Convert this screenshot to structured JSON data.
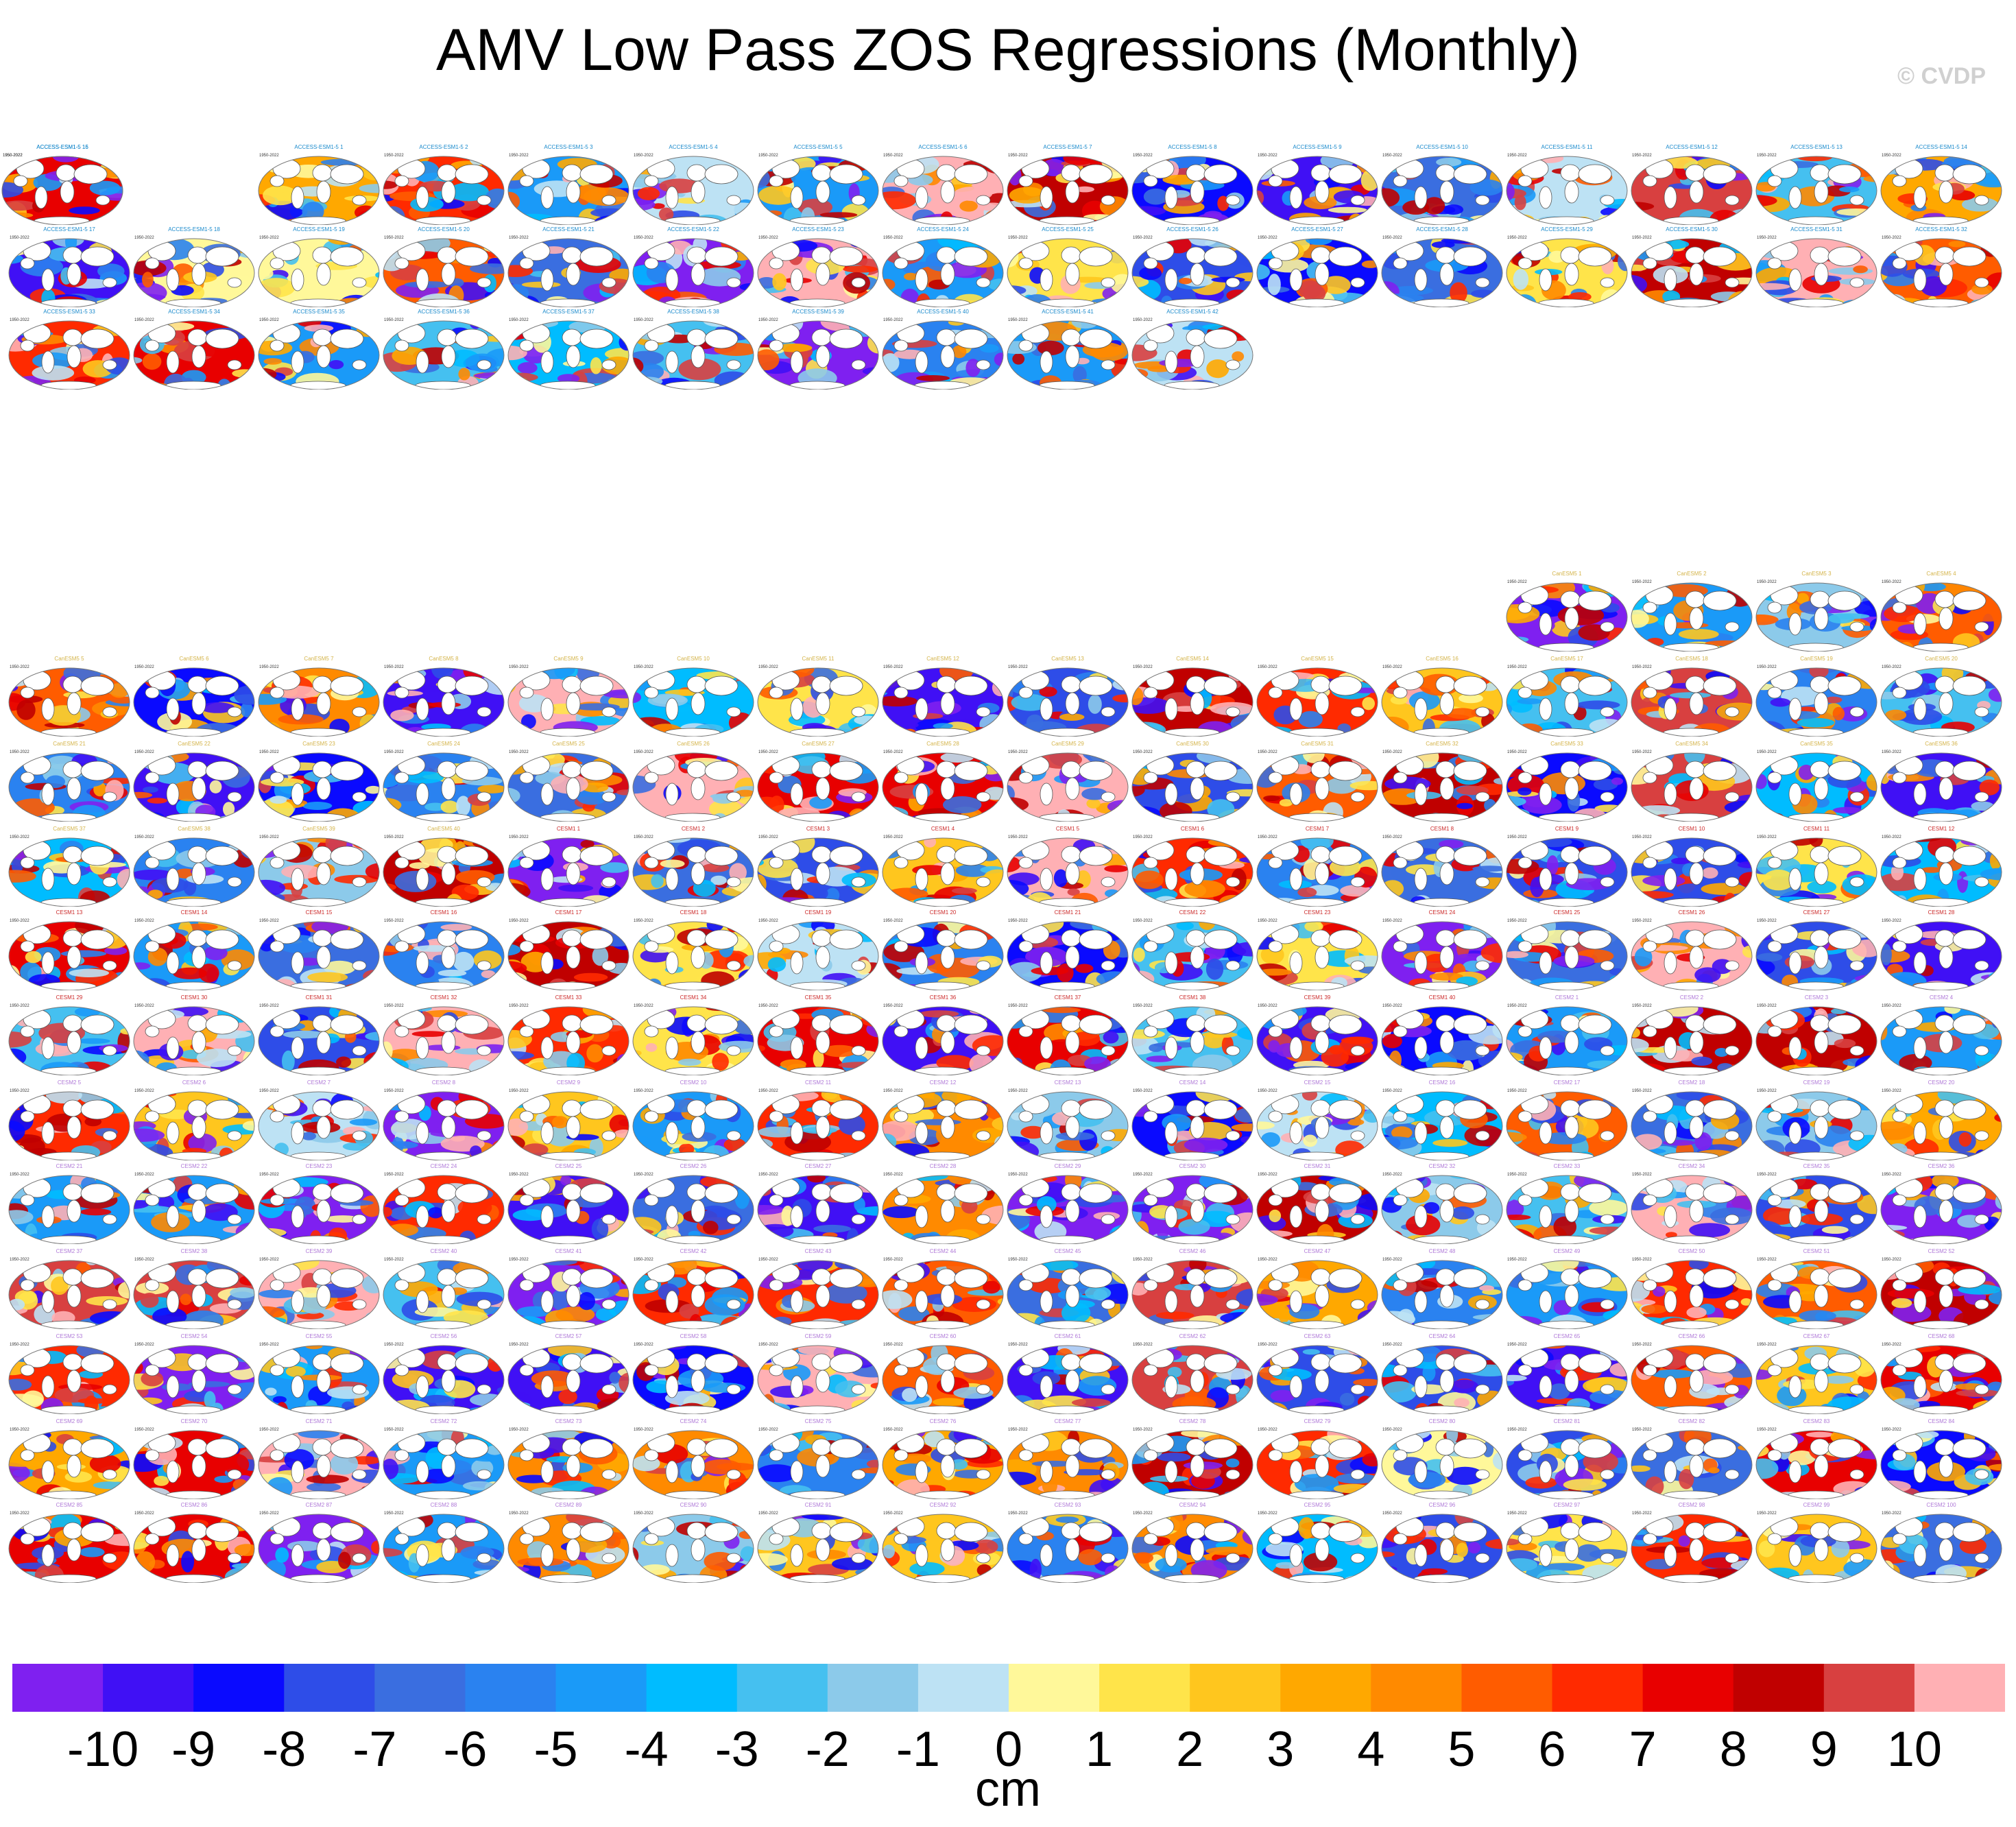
{
  "title": "AMV Low Pass ZOS Regressions (Monthly)",
  "copyright": "© CVDP",
  "units": "cm",
  "colors": {
    "bins": [
      "#7f20f0",
      "#4010f5",
      "#0a0aff",
      "#2e4de8",
      "#3a6ee0",
      "#2a82f0",
      "#1a9af8",
      "#00bcff",
      "#45c0f0",
      "#8ccaea",
      "#bde2f4",
      "#fff89a",
      "#ffe44a",
      "#ffc61e",
      "#ffa800",
      "#ff8a00",
      "#ff5c00",
      "#ff2a00",
      "#e80000",
      "#c00000",
      "#d84040",
      "#ffb0b4"
    ],
    "group_titles": [
      "#1a8acc",
      "#d4b44a",
      "#cc2a2a",
      "#b07ad8"
    ]
  },
  "colorbar": {
    "ticks": [
      "-10",
      "-9",
      "-8",
      "-7",
      "-6",
      "-5",
      "-4",
      "-3",
      "-2",
      "-1",
      "0",
      "1",
      "2",
      "3",
      "4",
      "5",
      "6",
      "7",
      "8",
      "9",
      "10"
    ]
  },
  "chart_data": {
    "type": "heatmap",
    "title": "AMV Low Pass ZOS Regressions (Monthly)",
    "units": "cm",
    "levels": [
      -10,
      -9,
      -8,
      -7,
      -6,
      -5,
      -4,
      -3,
      -2,
      -1,
      0,
      1,
      2,
      3,
      4,
      5,
      6,
      7,
      8,
      9,
      10
    ],
    "panel_period": "1950-2022",
    "groups": [
      {
        "model": "ACCESS-ESM1-5",
        "panel_count": 40
      },
      {
        "model": "CanESM5",
        "panel_count": 40
      },
      {
        "model": "CESM1",
        "panel_count": 40
      },
      {
        "model": "CESM2",
        "panel_count": 100
      }
    ]
  }
}
